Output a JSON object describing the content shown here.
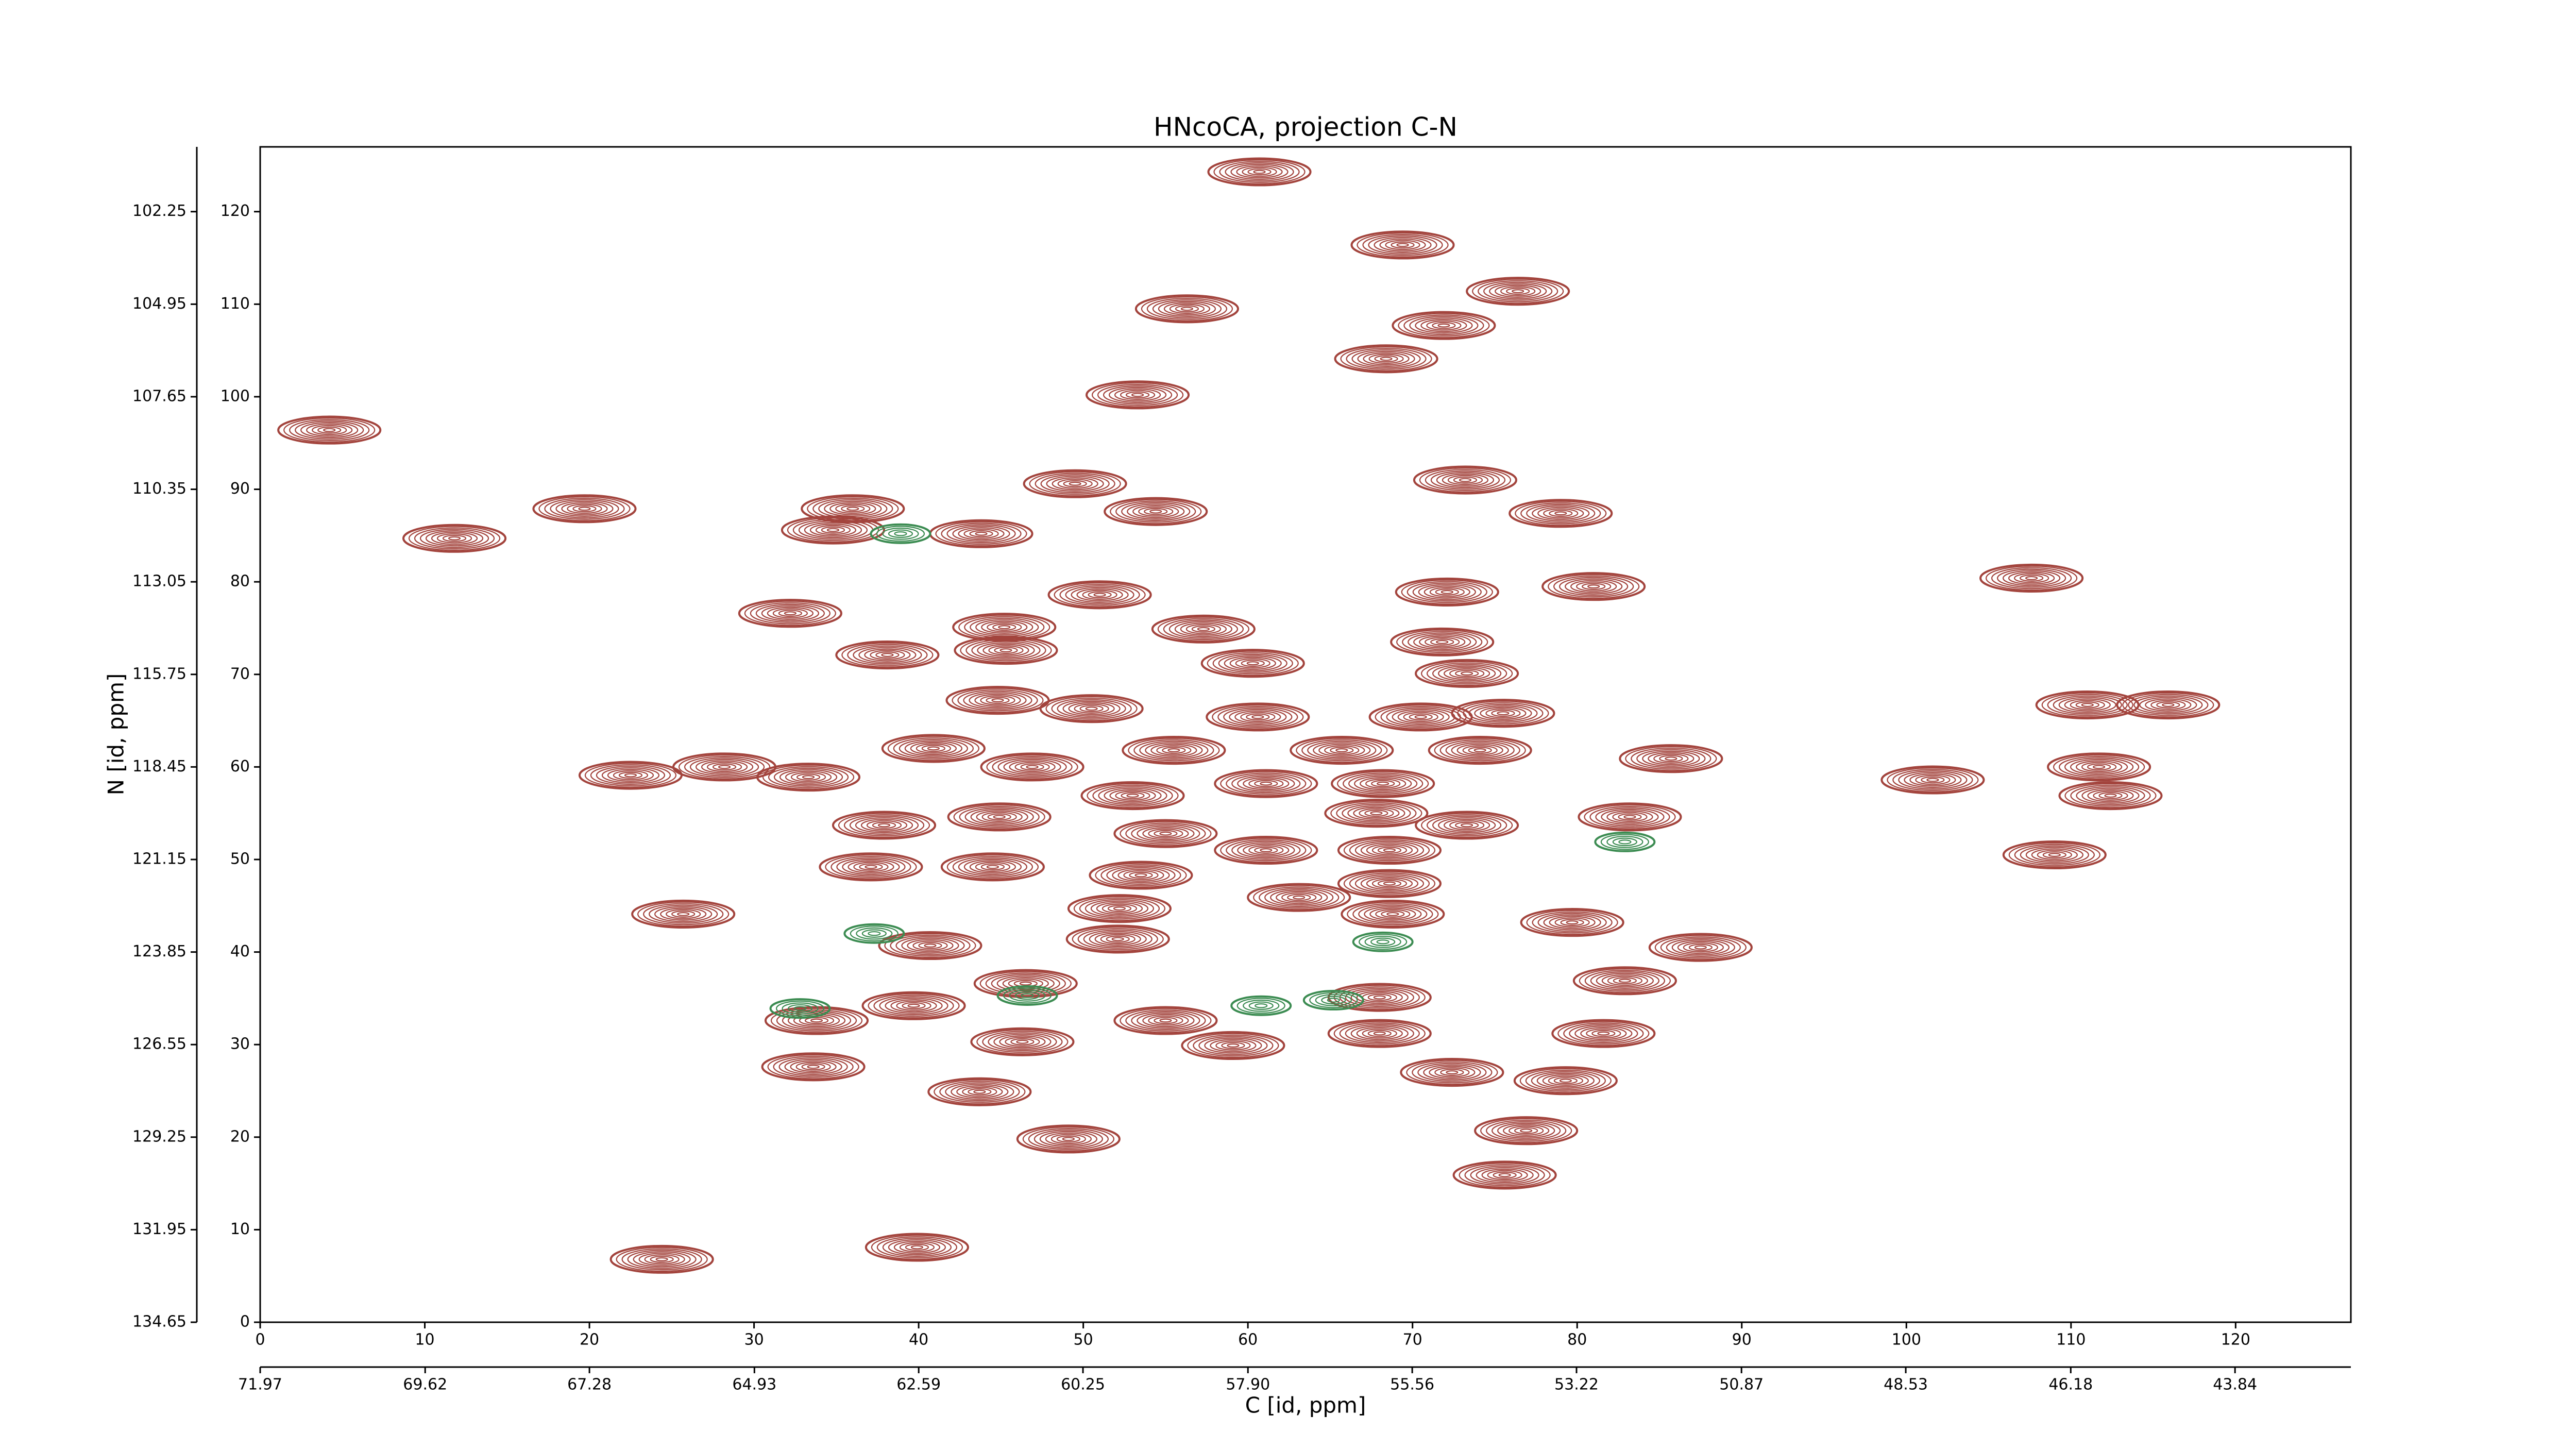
{
  "chart_data": {
    "type": "contour",
    "title": "HNcoCA, projection C-N",
    "xlabel": "C [id, ppm]",
    "ylabel": "N [id, ppm]",
    "xlim": [
      0,
      127
    ],
    "xticks": [
      0,
      10,
      20,
      30,
      40,
      50,
      60,
      70,
      80,
      90,
      100,
      110,
      120
    ],
    "x2lim": [
      71.97,
      42.19
    ],
    "x2ticks": [
      71.97,
      69.62,
      67.28,
      64.93,
      62.59,
      60.25,
      {
        "value": 57.9,
        "label": "57.90"
      },
      55.56,
      53.22,
      50.87,
      48.53,
      46.18,
      43.84
    ],
    "ylim": [
      0,
      127
    ],
    "yticks": [
      0,
      10,
      20,
      30,
      40,
      50,
      60,
      70,
      80,
      90,
      100,
      110,
      120
    ],
    "y2lim": [
      134.65,
      100.36
    ],
    "y2ticks": [
      134.65,
      131.95,
      129.25,
      126.55,
      123.85,
      121.15,
      118.45,
      115.75,
      113.05,
      110.35,
      107.65,
      104.95,
      102.25
    ],
    "series": [
      {
        "color": "#a3443d",
        "x": [
          60.7,
          69.4,
          76.4,
          56.3,
          71.9,
          68.4,
          53.3,
          4.2,
          73.2,
          49.5,
          36.0,
          54.4,
          19.7,
          79.0,
          11.8,
          43.8,
          34.8,
          107.6,
          81.0,
          72.1,
          51.0,
          32.2,
          45.2,
          57.3,
          71.8,
          38.1,
          45.3,
          60.3,
          73.3,
          44.8,
          50.5,
          60.6,
          70.5,
          75.5,
          111.0,
          115.9,
          40.9,
          55.5,
          65.7,
          74.1,
          46.9,
          85.7,
          22.5,
          28.2,
          33.3,
          101.6,
          111.7,
          112.4,
          53.0,
          61.1,
          68.2,
          44.9,
          37.9,
          67.8,
          73.3,
          83.2,
          55.0,
          61.1,
          68.6,
          37.1,
          44.5,
          109.0,
          53.5,
          68.6,
          63.1,
          25.7,
          52.2,
          68.8,
          79.7,
          40.7,
          52.1,
          87.5,
          82.9,
          46.5,
          68.0,
          39.7,
          33.8,
          55.0,
          68.0,
          81.6,
          46.3,
          59.1,
          33.6,
          72.4,
          79.3,
          43.7,
          49.1,
          76.9,
          75.6,
          24.4,
          39.9
        ],
        "y": [
          124.3,
          116.4,
          111.4,
          109.5,
          107.7,
          104.1,
          100.2,
          96.4,
          91.0,
          90.6,
          87.9,
          87.6,
          87.9,
          87.4,
          84.7,
          85.2,
          85.6,
          80.4,
          79.5,
          78.9,
          78.6,
          76.6,
          75.1,
          74.9,
          73.5,
          72.1,
          72.6,
          71.2,
          70.1,
          67.2,
          66.3,
          65.4,
          65.4,
          65.8,
          66.7,
          66.7,
          62.0,
          61.8,
          61.8,
          61.8,
          60.0,
          60.9,
          59.1,
          60.0,
          58.9,
          58.6,
          60.0,
          56.9,
          56.9,
          58.2,
          58.2,
          54.6,
          53.7,
          55.0,
          53.7,
          54.6,
          52.8,
          51.0,
          51.0,
          49.2,
          49.2,
          50.5,
          48.3,
          47.4,
          45.9,
          44.1,
          44.7,
          44.1,
          43.2,
          40.7,
          41.4,
          40.5,
          36.9,
          36.6,
          35.1,
          34.2,
          32.6,
          32.6,
          31.2,
          31.2,
          30.3,
          29.9,
          27.6,
          27.0,
          26.1,
          24.9,
          19.8,
          20.7,
          15.9,
          6.8,
          8.1
        ]
      },
      {
        "color": "#3c8c52",
        "x": [
          38.9,
          46.6,
          65.2,
          82.9,
          37.3,
          32.8,
          68.2,
          60.8
        ],
        "y": [
          85.2,
          35.3,
          34.8,
          51.9,
          42.0,
          33.9,
          41.1,
          34.2
        ]
      }
    ]
  }
}
